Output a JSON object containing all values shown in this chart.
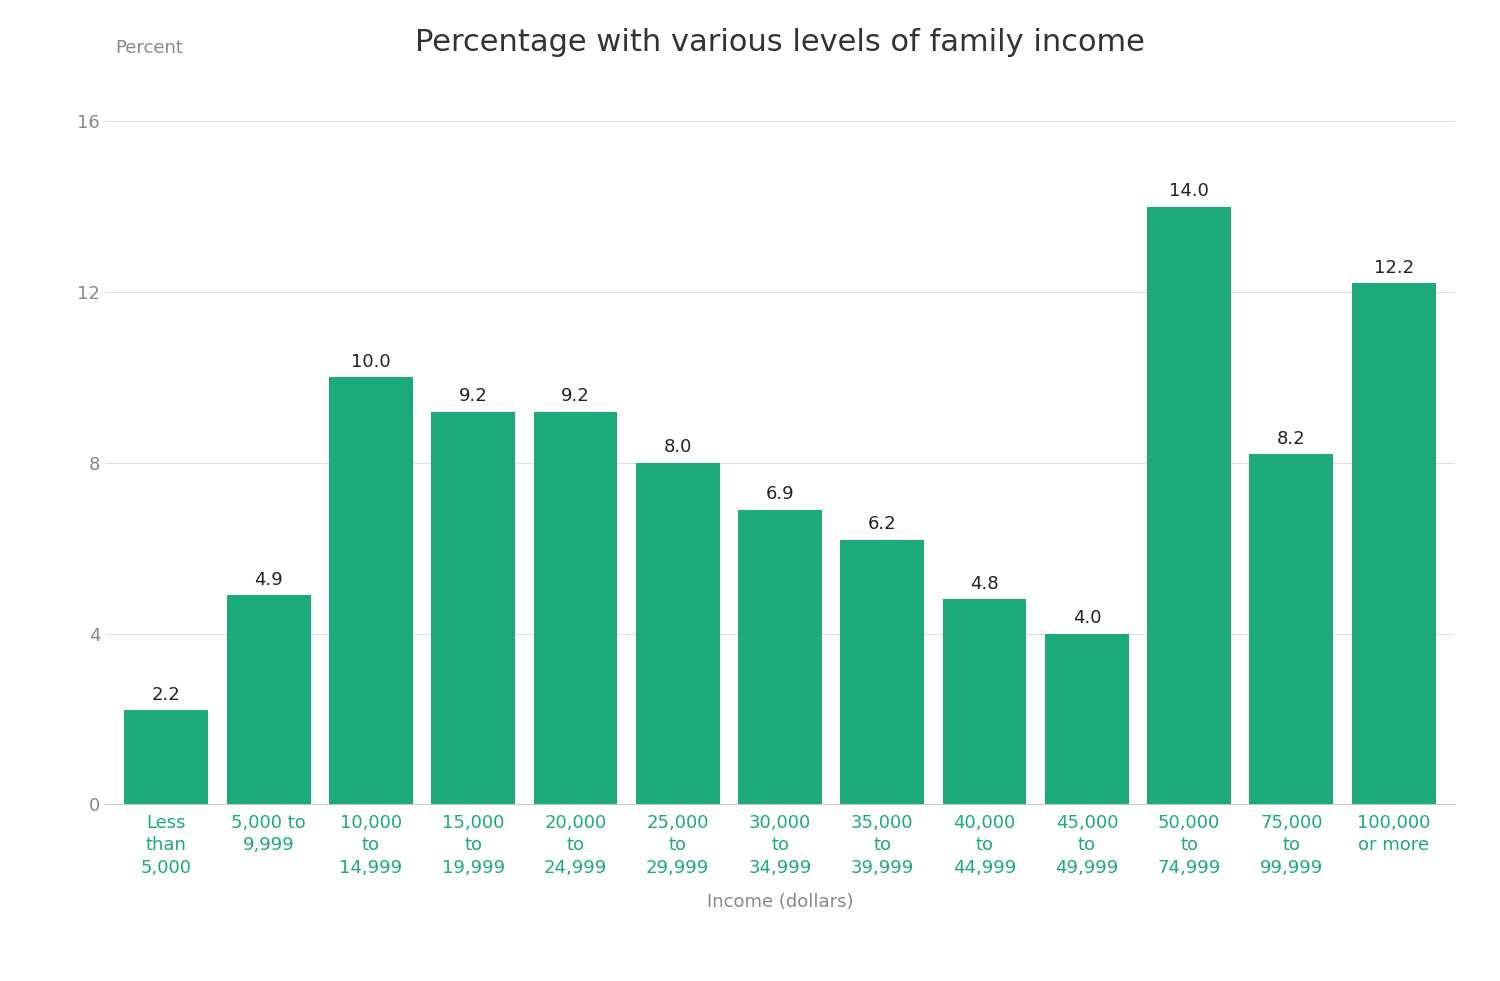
{
  "title": "Percentage with various levels of family income",
  "xlabel": "Income (dollars)",
  "ylabel": "Percent",
  "background_color": "#ffffff",
  "bar_color": "#1daa7a",
  "text_color": "#888888",
  "label_color": "#333333",
  "bar_label_color": "#222222",
  "xtick_color": "#1daa7a",
  "categories": [
    "Less\nthan\n5,000",
    "5,000 to\n9,999",
    "10,000\nto\n14,999",
    "15,000\nto\n19,999",
    "20,000\nto\n24,999",
    "25,000\nto\n29,999",
    "30,000\nto\n34,999",
    "35,000\nto\n39,999",
    "40,000\nto\n44,999",
    "45,000\nto\n49,999",
    "50,000\nto\n74,999",
    "75,000\nto\n99,999",
    "100,000\nor more"
  ],
  "values": [
    2.2,
    4.9,
    10.0,
    9.2,
    9.2,
    8.0,
    6.9,
    6.2,
    4.8,
    4.0,
    14.0,
    8.2,
    12.2
  ],
  "ylim": [
    0,
    17
  ],
  "yticks": [
    0,
    4,
    8,
    12,
    16
  ],
  "title_fontsize": 22,
  "axis_label_fontsize": 13,
  "tick_fontsize": 13,
  "bar_label_fontsize": 13,
  "bar_width": 0.82
}
